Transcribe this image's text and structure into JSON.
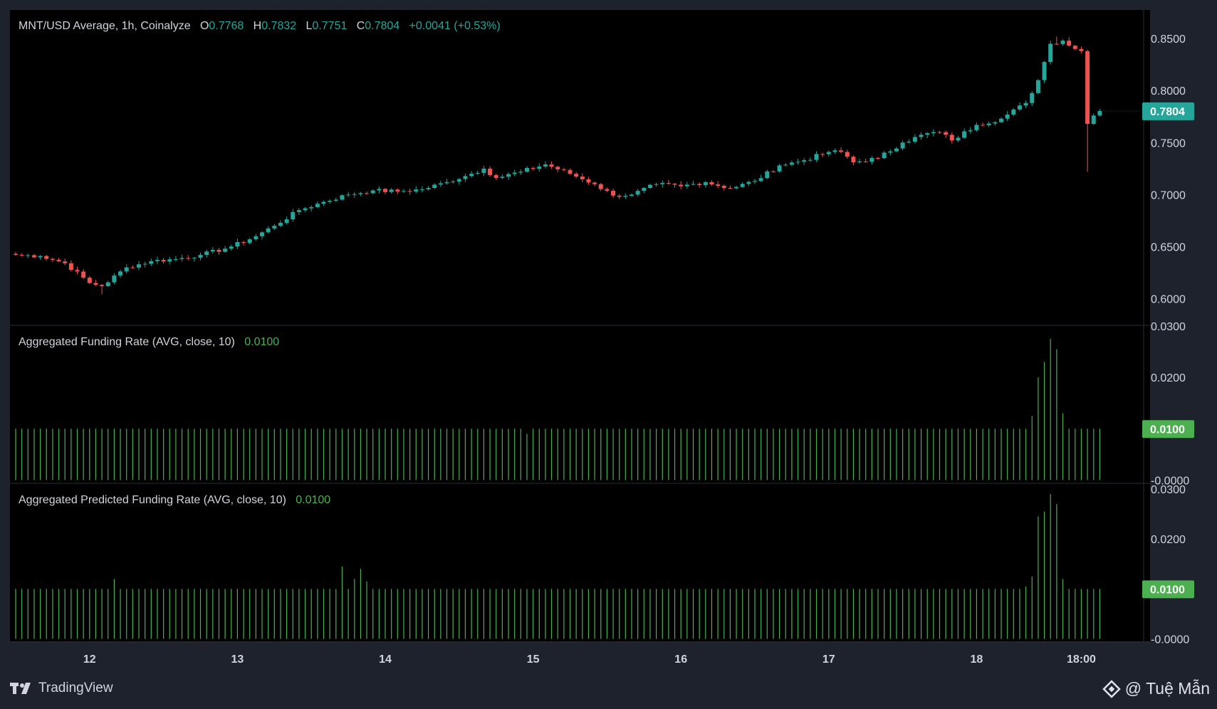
{
  "colors": {
    "up": "#26a69a",
    "down": "#ef5350",
    "funding": "#4caf50",
    "background": "#000000",
    "chrome": "#1e222d",
    "grid_line": "#2a2e39"
  },
  "legend_main": {
    "symbol": "MNT/USD Average, 1h, Coinalyze",
    "o_label": "O",
    "o_value": "0.7768",
    "h_label": "H",
    "h_value": "0.7832",
    "l_label": "L",
    "l_value": "0.7751",
    "c_label": "C",
    "c_value": "0.7804",
    "change": "+0.0041 (+0.53%)"
  },
  "legend_funding": {
    "title": "Aggregated Funding Rate (AVG, close, 10)",
    "value": "0.0100"
  },
  "legend_predicted": {
    "title": "Aggregated Predicted Funding Rate (AVG, close, 10)",
    "value": "0.0100"
  },
  "branding": {
    "left": "TradingView",
    "right": "@ Tuệ Mẫn"
  },
  "chart_data": [
    {
      "type": "candlestick",
      "title": "MNT/USD Average, 1h, Coinalyze",
      "interval": "1h",
      "ylim": [
        0.575,
        0.8775
      ],
      "y_ticks": [
        "0.8500",
        "0.8000",
        "0.7500",
        "0.7000",
        "0.6500",
        "0.6000"
      ],
      "last_price_label": "0.7804",
      "x_ticks": [
        "12",
        "13",
        "14",
        "15",
        "16",
        "17",
        "18",
        "18:00"
      ],
      "x_tick_hours": [
        12,
        36,
        60,
        84,
        108,
        132,
        156,
        173
      ],
      "close_path": [
        [
          0,
          0.642
        ],
        [
          4,
          0.641
        ],
        [
          8,
          0.634
        ],
        [
          12,
          0.615
        ],
        [
          14,
          0.612
        ],
        [
          18,
          0.63
        ],
        [
          22,
          0.636
        ],
        [
          26,
          0.638
        ],
        [
          30,
          0.642
        ],
        [
          34,
          0.648
        ],
        [
          38,
          0.657
        ],
        [
          42,
          0.67
        ],
        [
          46,
          0.685
        ],
        [
          50,
          0.693
        ],
        [
          54,
          0.7
        ],
        [
          58,
          0.704
        ],
        [
          62,
          0.703
        ],
        [
          66,
          0.705
        ],
        [
          70,
          0.712
        ],
        [
          74,
          0.72
        ],
        [
          76,
          0.725
        ],
        [
          78,
          0.716
        ],
        [
          82,
          0.722
        ],
        [
          86,
          0.729
        ],
        [
          90,
          0.72
        ],
        [
          94,
          0.71
        ],
        [
          97,
          0.699
        ],
        [
          100,
          0.7
        ],
        [
          104,
          0.71
        ],
        [
          108,
          0.708
        ],
        [
          112,
          0.712
        ],
        [
          116,
          0.706
        ],
        [
          120,
          0.713
        ],
        [
          124,
          0.728
        ],
        [
          128,
          0.733
        ],
        [
          132,
          0.741
        ],
        [
          134,
          0.741
        ],
        [
          136,
          0.731
        ],
        [
          140,
          0.735
        ],
        [
          144,
          0.75
        ],
        [
          148,
          0.759
        ],
        [
          150,
          0.76
        ],
        [
          152,
          0.752
        ],
        [
          156,
          0.767
        ],
        [
          160,
          0.773
        ],
        [
          164,
          0.788
        ],
        [
          166,
          0.81
        ],
        [
          168,
          0.845
        ],
        [
          170,
          0.848
        ],
        [
          172,
          0.84
        ],
        [
          173,
          0.838
        ],
        [
          174,
          0.768
        ],
        [
          175,
          0.776
        ],
        [
          176,
          0.7804
        ]
      ]
    },
    {
      "type": "bar",
      "title": "Aggregated Funding Rate (AVG, close, 10)",
      "ylim": [
        -0.0005,
        0.03
      ],
      "y_ticks": [
        "0.0300",
        "0.0200",
        "-0.0000"
      ],
      "last_value_label": "0.0100",
      "baseline": 0.01,
      "spikes": [
        [
          83,
          0.009
        ],
        [
          165,
          0.0125
        ],
        [
          166,
          0.02
        ],
        [
          167,
          0.023
        ],
        [
          168,
          0.0275
        ],
        [
          169,
          0.0255
        ],
        [
          170,
          0.013
        ],
        [
          171,
          0.01
        ]
      ]
    },
    {
      "type": "bar",
      "title": "Aggregated Predicted Funding Rate (AVG, close, 10)",
      "ylim": [
        -0.0005,
        0.031
      ],
      "y_ticks": [
        "0.0300",
        "0.0200",
        "-0.0000"
      ],
      "last_value_label": "0.0100",
      "baseline": 0.01,
      "spikes": [
        [
          16,
          0.012
        ],
        [
          53,
          0.0145
        ],
        [
          55,
          0.012
        ],
        [
          56,
          0.014
        ],
        [
          57,
          0.0115
        ],
        [
          164,
          0.0105
        ],
        [
          165,
          0.0125
        ],
        [
          166,
          0.0245
        ],
        [
          167,
          0.0255
        ],
        [
          168,
          0.029
        ],
        [
          169,
          0.027
        ],
        [
          170,
          0.012
        ],
        [
          171,
          0.01
        ]
      ]
    }
  ]
}
